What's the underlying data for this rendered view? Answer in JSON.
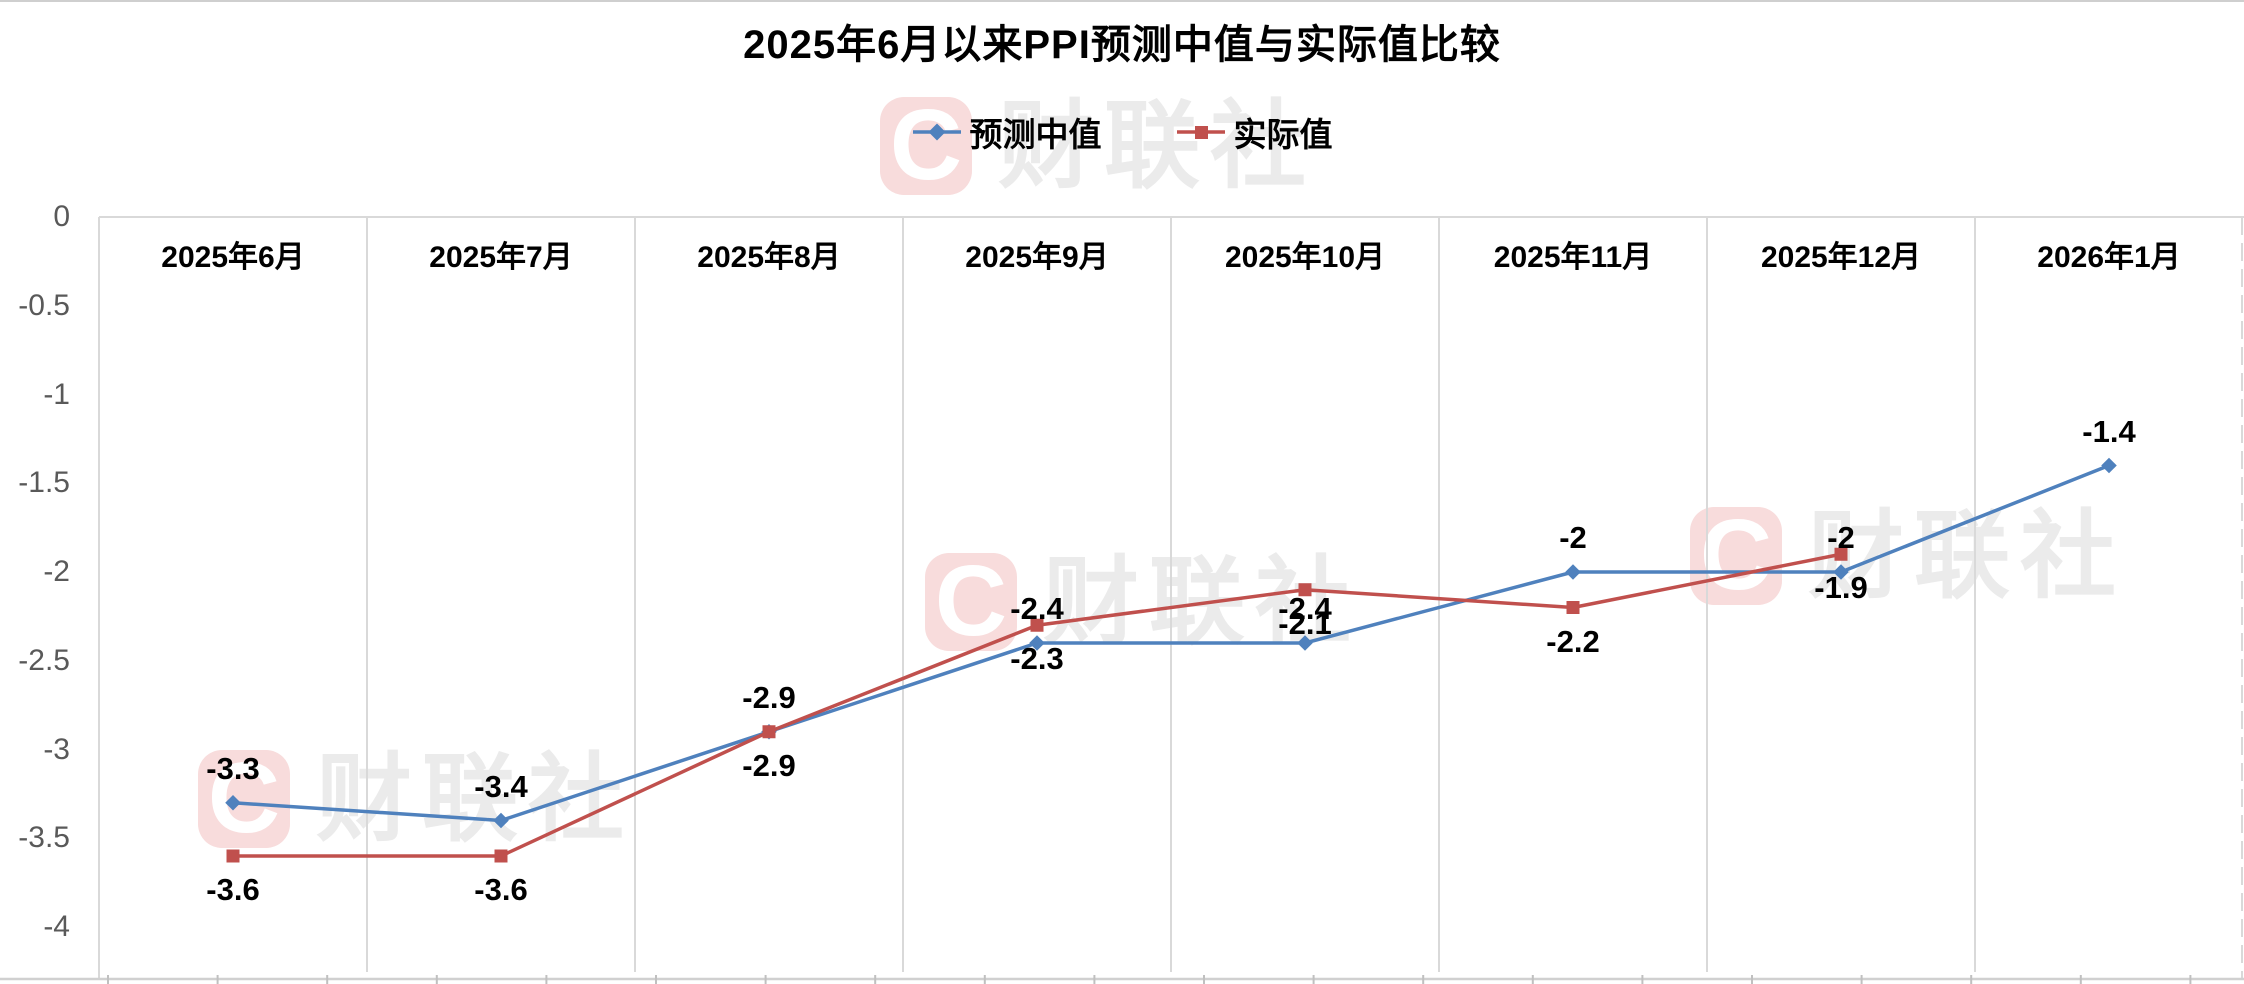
{
  "chart_data": {
    "type": "line",
    "title": "2025年6月以来PPI预测中值与实际值比较",
    "categories": [
      "2025年6月",
      "2025年7月",
      "2025年8月",
      "2025年9月",
      "2025年10月",
      "2025年11月",
      "2025年12月",
      "2026年1月"
    ],
    "series": [
      {
        "name": "预测中值",
        "color": "#4F81BD",
        "marker": "diamond",
        "label_position": "above",
        "values": [
          -3.3,
          -3.4,
          -2.9,
          -2.4,
          -2.4,
          -2.0,
          -2.0,
          -1.4
        ],
        "labels": [
          "-3.3",
          "-3.4",
          "-2.9",
          "-2.4",
          "-2.4",
          "-2",
          "-2",
          "-1.4"
        ]
      },
      {
        "name": "实际值",
        "color": "#C0504D",
        "marker": "square",
        "label_position": "below",
        "values": [
          -3.6,
          -3.6,
          -2.9,
          -2.3,
          -2.1,
          -2.2,
          -1.9,
          null
        ],
        "labels": [
          "-3.6",
          "-3.6",
          "-2.9",
          "-2.3",
          "-2.1",
          "-2.2",
          "-1.9",
          ""
        ]
      }
    ],
    "y_axis": {
      "max": 0,
      "min": -4,
      "tick_labels": [
        "0",
        "-0.5",
        "-1",
        "-1.5",
        "-2",
        "-2.5",
        "-3",
        "-3.5",
        "-4"
      ],
      "tick_values": [
        0,
        -0.5,
        -1,
        -1.5,
        -2,
        -2.5,
        -3,
        -3.5,
        -4
      ]
    },
    "gridlines": "vertical",
    "legend_position": "top-center"
  },
  "watermark": {
    "letter": "C",
    "text": "财联社"
  },
  "colors": {
    "forecast_blue": "#4F81BD",
    "actual_red": "#C0504D",
    "gridline": "#d9d9d9",
    "axis_text": "#595959"
  }
}
